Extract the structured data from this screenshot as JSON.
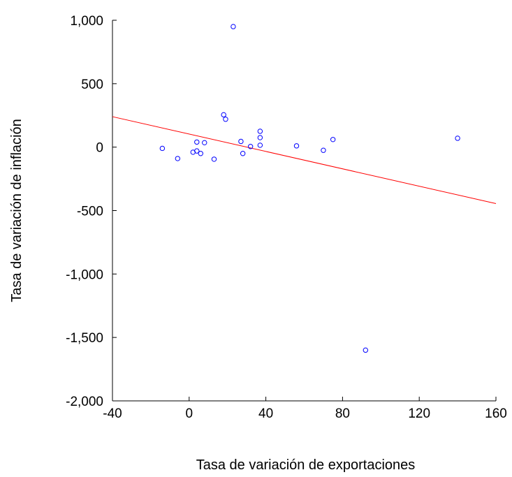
{
  "chart_data": {
    "type": "scatter",
    "title": "",
    "xlabel": "Tasa de variación de exportaciones",
    "ylabel": "Tasa de variación de inflación",
    "xlim": [
      -40,
      160
    ],
    "ylim": [
      -2000,
      1000
    ],
    "xticks": [
      -40,
      0,
      40,
      80,
      120,
      160
    ],
    "xtick_labels": [
      "-40",
      "0",
      "40",
      "80",
      "120",
      "160"
    ],
    "yticks": [
      -2000,
      -1500,
      -1000,
      -500,
      0,
      500,
      1000
    ],
    "ytick_labels": [
      "-2,000",
      "-1,500",
      "-1,000",
      "-500",
      "0",
      "500",
      "1,000"
    ],
    "grid": false,
    "series": [
      {
        "type": "scatter",
        "color": "#0000ff",
        "marker": "hollow-circle",
        "points": [
          {
            "x": -14,
            "y": -10
          },
          {
            "x": -6,
            "y": -90
          },
          {
            "x": 2,
            "y": -40
          },
          {
            "x": 4,
            "y": 40
          },
          {
            "x": 4,
            "y": -30
          },
          {
            "x": 6,
            "y": -50
          },
          {
            "x": 8,
            "y": 35
          },
          {
            "x": 13,
            "y": -95
          },
          {
            "x": 18,
            "y": 255
          },
          {
            "x": 19,
            "y": 220
          },
          {
            "x": 23,
            "y": 950
          },
          {
            "x": 27,
            "y": 45
          },
          {
            "x": 28,
            "y": -50
          },
          {
            "x": 32,
            "y": 5
          },
          {
            "x": 37,
            "y": 125
          },
          {
            "x": 37,
            "y": 75
          },
          {
            "x": 37,
            "y": 15
          },
          {
            "x": 56,
            "y": 10
          },
          {
            "x": 70,
            "y": -25
          },
          {
            "x": 75,
            "y": 60
          },
          {
            "x": 92,
            "y": -1600
          },
          {
            "x": 140,
            "y": 70
          }
        ]
      },
      {
        "type": "line",
        "color": "#ff0000",
        "points": [
          {
            "x": -40,
            "y": 240
          },
          {
            "x": 160,
            "y": -445
          }
        ]
      }
    ]
  }
}
